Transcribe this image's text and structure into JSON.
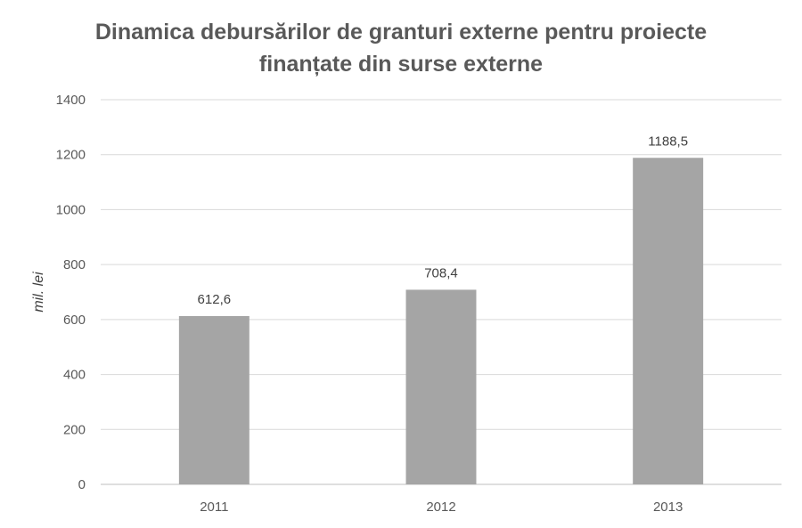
{
  "chart_data": {
    "type": "bar",
    "title_lines": [
      "Dinamica debursărilor de granturi externe pentru proiecte",
      "finanțate din surse externe"
    ],
    "ylabel": "mil. lei",
    "xlabel": "",
    "categories": [
      "2011",
      "2012",
      "2013"
    ],
    "values": [
      612.6,
      708.4,
      1188.5
    ],
    "value_labels": [
      "612,6",
      "708,4",
      "1188,5"
    ],
    "ylim": [
      0,
      1400
    ],
    "yticks": [
      0,
      200,
      400,
      600,
      800,
      1000,
      1200,
      1400
    ],
    "grid": true,
    "legend": "none",
    "bar_color": "#a5a5a5",
    "grid_color": "#d9d9d9",
    "axis_color": "#bfbfbf"
  }
}
